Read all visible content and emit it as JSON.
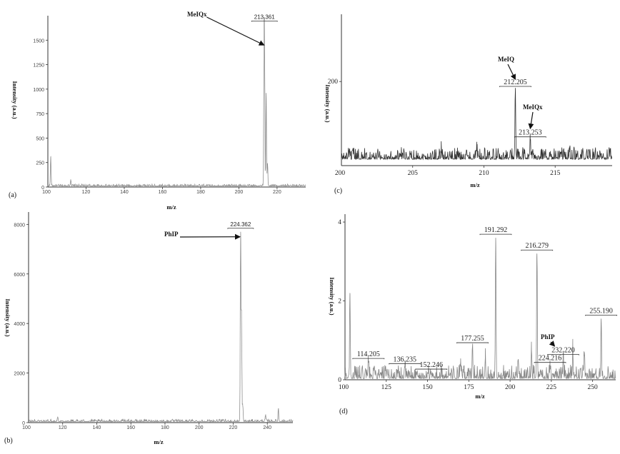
{
  "chart_data": [
    {
      "id": "a",
      "type": "line",
      "panel_label": "(a)",
      "xlabel": "m/z",
      "ylabel": "Intensity (a.u.)",
      "xlim": [
        100,
        235
      ],
      "ylim": [
        0,
        1750
      ],
      "xticks": [
        {
          "v": 120,
          "label": "120"
        },
        {
          "v": 140,
          "label": "140"
        },
        {
          "v": 160,
          "label": "160"
        },
        {
          "v": 180,
          "label": "180"
        },
        {
          "v": 200,
          "label": "200"
        },
        {
          "v": 220,
          "label": "220"
        }
      ],
      "yticks": [
        {
          "v": 0,
          "label": "0"
        },
        {
          "v": 250,
          "label": "250"
        },
        {
          "v": 500,
          "label": "500"
        },
        {
          "v": 750,
          "label": "750"
        },
        {
          "v": 1000,
          "label": "1000"
        },
        {
          "v": 1250,
          "label": "1250"
        },
        {
          "v": 1500,
          "label": "1500"
        }
      ],
      "x_axis_start_label": "100",
      "baseline": 10,
      "noise": 12,
      "peaks": [
        [
          101.5,
          310
        ],
        [
          112,
          70
        ],
        [
          150,
          18
        ],
        [
          213.2,
          1320
        ],
        [
          213.4,
          1660
        ],
        [
          214.3,
          960
        ],
        [
          215,
          240
        ]
      ],
      "peak_labels": [
        {
          "x": 213.4,
          "y": 1660,
          "label": "213.361"
        }
      ],
      "annotations": [
        {
          "text": "MeIQx",
          "target_x": 213.2,
          "target_y": 1450
        }
      ],
      "line_color": "#8f8f8f"
    },
    {
      "id": "b",
      "type": "line",
      "panel_label": "(b)",
      "xlabel": "m/z",
      "ylabel": "Intensity (a.u.)",
      "xlim": [
        100,
        255
      ],
      "ylim": [
        0,
        8500
      ],
      "xticks": [
        {
          "v": 120,
          "label": "120"
        },
        {
          "v": 140,
          "label": "140"
        },
        {
          "v": 160,
          "label": "160"
        },
        {
          "v": 180,
          "label": "180"
        },
        {
          "v": 200,
          "label": "200"
        },
        {
          "v": 220,
          "label": "220"
        },
        {
          "v": 240,
          "label": "240"
        }
      ],
      "yticks": [
        {
          "v": 0,
          "label": "0"
        },
        {
          "v": 2000,
          "label": "2000"
        },
        {
          "v": 4000,
          "label": "4000"
        },
        {
          "v": 6000,
          "label": "6000"
        },
        {
          "v": 8000,
          "label": "8000"
        }
      ],
      "x_axis_start_label": "100",
      "baseline": 40,
      "noise": 60,
      "peaks": [
        [
          117,
          180
        ],
        [
          224.36,
          7700
        ],
        [
          224.9,
          4300
        ],
        [
          225.6,
          700
        ],
        [
          239,
          280
        ],
        [
          246.5,
          550
        ]
      ],
      "peak_labels": [
        {
          "x": 224.36,
          "y": 7700,
          "label": "224.362"
        }
      ],
      "annotations": [
        {
          "text": "PhIP",
          "target_x": 224.0,
          "target_y": 7500
        }
      ],
      "line_color": "#8f8f8f"
    },
    {
      "id": "c",
      "type": "line",
      "panel_label": "(c)",
      "xlabel": "m/z",
      "ylabel": "Intensity (a.u.)",
      "xlim": [
        200,
        219
      ],
      "ylim": [
        0,
        360
      ],
      "xticks": [
        {
          "v": 205,
          "label": "205"
        },
        {
          "v": 210,
          "label": "210"
        },
        {
          "v": 215,
          "label": "215"
        }
      ],
      "yticks": [
        {
          "v": 200,
          "label": "200"
        }
      ],
      "x_axis_start_label": "200",
      "baseline": 15,
      "noise": 18,
      "peaks": [
        [
          212.205,
          180
        ],
        [
          213.253,
          60
        ],
        [
          207,
          30
        ],
        [
          209.5,
          35
        ],
        [
          216,
          32
        ]
      ],
      "peak_labels": [
        {
          "x": 212.205,
          "y": 180,
          "label": "212.205"
        },
        {
          "x": 213.253,
          "y": 60,
          "label": "213.253"
        }
      ],
      "annotations": [
        {
          "text": "MeIQ",
          "target_x": 212.205,
          "target_y": 205
        },
        {
          "text": "MeIQx",
          "target_x": 213.253,
          "target_y": 88
        }
      ],
      "line_color": "#333333"
    },
    {
      "id": "d",
      "type": "line",
      "panel_label": "(d)",
      "xlabel": "m/z",
      "ylabel": "Intensity (a.u.)",
      "xlim": [
        100,
        264
      ],
      "ylim": [
        0,
        4.2
      ],
      "xticks": [
        {
          "v": 125,
          "label": "125"
        },
        {
          "v": 150,
          "label": "150"
        },
        {
          "v": 175,
          "label": "175"
        },
        {
          "v": 200,
          "label": "200"
        },
        {
          "v": 225,
          "label": "225"
        },
        {
          "v": 250,
          "label": "250"
        }
      ],
      "yticks": [
        {
          "v": 0,
          "label": "0"
        },
        {
          "v": 2,
          "label": "2"
        },
        {
          "v": 4,
          "label": "4"
        }
      ],
      "x_axis_start_label": "100",
      "baseline": 0.03,
      "noise": 0.22,
      "peaks": [
        [
          103,
          2.2
        ],
        [
          114.205,
          0.45
        ],
        [
          136.235,
          0.32
        ],
        [
          152.246,
          0.18
        ],
        [
          177.255,
          0.85
        ],
        [
          191.292,
          3.6
        ],
        [
          216.279,
          3.2
        ],
        [
          224.216,
          0.35
        ],
        [
          232.22,
          0.55
        ],
        [
          255.19,
          1.55
        ],
        [
          213,
          0.75
        ],
        [
          238,
          0.8
        ],
        [
          245,
          0.6
        ],
        [
          185,
          0.55
        ],
        [
          205,
          0.5
        ],
        [
          170,
          0.45
        ]
      ],
      "peak_labels": [
        {
          "x": 114.205,
          "y": 0.45,
          "label": "114.205"
        },
        {
          "x": 136.235,
          "y": 0.32,
          "label": "136.235"
        },
        {
          "x": 152.246,
          "y": 0.18,
          "label": "152.246"
        },
        {
          "x": 177.255,
          "y": 0.85,
          "label": "177.255"
        },
        {
          "x": 191.292,
          "y": 3.6,
          "label": "191.292"
        },
        {
          "x": 216.279,
          "y": 3.2,
          "label": "216.279"
        },
        {
          "x": 224.216,
          "y": 0.35,
          "label": "224.216"
        },
        {
          "x": 232.22,
          "y": 0.55,
          "label": "232.220"
        },
        {
          "x": 255.19,
          "y": 1.55,
          "label": "255.190"
        }
      ],
      "annotations": [
        {
          "text": "PhIP",
          "target_x": 227,
          "target_y": 0.85
        }
      ],
      "line_color": "#888888"
    }
  ]
}
